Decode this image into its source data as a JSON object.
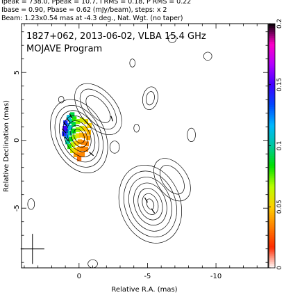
{
  "header": {
    "line1": "Ipeak = 738.0, Ppeak = 10.7, I RMS = 0.18, P RMS = 0.22",
    "line2": "Ibase = 0.90, Pbase = 0.62 (mJy/beam), steps: x 2",
    "line3": "Beam: 1.23x0.54 mas at -4.3 deg., Nat. Wgt. (no taper)"
  },
  "chart_data": {
    "type": "contour",
    "title": "1827+062, 2013-06-02, VLBA 15.4 GHz",
    "subtitle": "MOJAVE Program",
    "xlabel": "Relative R.A. (mas)",
    "ylabel": "Relative Declination (mas)",
    "xlim": [
      4.2,
      -13.8
    ],
    "ylim": [
      -9.4,
      8.6
    ],
    "x_ticks": [
      {
        "v": 0,
        "label": "0"
      },
      {
        "v": -5,
        "label": "-5"
      },
      {
        "v": -10,
        "label": "-10"
      }
    ],
    "y_ticks": [
      {
        "v": 5,
        "label": "5"
      },
      {
        "v": 0,
        "label": "0"
      },
      {
        "v": -5,
        "label": "-5"
      }
    ],
    "colorbar": {
      "range": [
        0,
        0.2
      ],
      "ticks": [
        {
          "v": 0,
          "label": "0"
        },
        {
          "v": 0.05,
          "label": "0.05"
        },
        {
          "v": 0.1,
          "label": "0.1"
        },
        {
          "v": 0.15,
          "label": "0.15"
        },
        {
          "v": 0.2,
          "label": "0.2"
        }
      ],
      "colors": [
        "#ffffff",
        "#ff2a00",
        "#ff7e00",
        "#ffd000",
        "#b8ff00",
        "#00e000",
        "#00c8a0",
        "#00b8ff",
        "#0048ff",
        "#4000ff",
        "#b400ff",
        "#ff00c8",
        "#000000"
      ]
    },
    "components": [
      {
        "name": "core",
        "x": 0.0,
        "y": 0.3,
        "angle": -25,
        "radii": [
          [
            0.35,
            0.55
          ],
          [
            0.55,
            0.85
          ],
          [
            0.8,
            1.2
          ],
          [
            1.05,
            1.6
          ],
          [
            1.3,
            2.0
          ],
          [
            1.6,
            2.4
          ],
          [
            1.9,
            2.85
          ]
        ]
      },
      {
        "name": "jet-north",
        "x": -1.4,
        "y": 2.3,
        "angle": -40,
        "radii": [
          [
            0.6,
            1.2
          ],
          [
            0.95,
            1.75
          ],
          [
            1.3,
            2.2
          ]
        ]
      },
      {
        "name": "south-blob",
        "x": -5.2,
        "y": -4.7,
        "angle": -20,
        "radii": [
          [
            0.25,
            0.4
          ],
          [
            0.55,
            0.8
          ],
          [
            0.85,
            1.2
          ],
          [
            1.15,
            1.6
          ],
          [
            1.5,
            2.05
          ],
          [
            1.85,
            2.5
          ],
          [
            2.2,
            2.95
          ]
        ]
      },
      {
        "name": "south-ext",
        "x": -6.8,
        "y": -2.9,
        "angle": -35,
        "radii": [
          [
            0.7,
            1.2
          ],
          [
            1.1,
            1.75
          ]
        ]
      },
      {
        "name": "blob-a",
        "x": -5.2,
        "y": 3.1,
        "angle": 10,
        "radii": [
          [
            0.3,
            0.5
          ],
          [
            0.55,
            0.85
          ]
        ]
      },
      {
        "name": "blob-b",
        "x": -2.6,
        "y": -0.5,
        "angle": 0,
        "radii": [
          [
            0.35,
            0.45
          ]
        ]
      },
      {
        "name": "blob-c",
        "x": -3.9,
        "y": 5.7,
        "angle": 0,
        "radii": [
          [
            0.2,
            0.3
          ]
        ]
      },
      {
        "name": "blob-d",
        "x": -4.2,
        "y": 0.9,
        "angle": 0,
        "radii": [
          [
            0.2,
            0.3
          ]
        ]
      },
      {
        "name": "blob-e",
        "x": -8.2,
        "y": 0.4,
        "angle": 0,
        "radii": [
          [
            0.3,
            0.5
          ]
        ]
      },
      {
        "name": "blob-f",
        "x": 3.5,
        "y": -4.7,
        "angle": 0,
        "radii": [
          [
            0.25,
            0.4
          ]
        ]
      },
      {
        "name": "blob-g",
        "x": 1.3,
        "y": 3.0,
        "angle": 0,
        "radii": [
          [
            0.2,
            0.25
          ]
        ]
      },
      {
        "name": "blob-h",
        "x": -6.8,
        "y": 7.5,
        "angle": 0,
        "radii": [
          [
            0.3,
            0.3
          ]
        ]
      },
      {
        "name": "blob-i",
        "x": -9.4,
        "y": 6.2,
        "angle": 0,
        "radii": [
          [
            0.3,
            0.3
          ]
        ]
      },
      {
        "name": "blob-j",
        "x": -1.0,
        "y": -9.1,
        "angle": 0,
        "radii": [
          [
            0.35,
            0.3
          ]
        ]
      }
    ],
    "polarization_pixels": [
      {
        "x": 0.85,
        "y": 1.1,
        "v": 0.12
      },
      {
        "x": 0.6,
        "y": 1.4,
        "v": 0.1
      },
      {
        "x": 0.35,
        "y": 1.6,
        "v": 0.08
      },
      {
        "x": 0.9,
        "y": 0.7,
        "v": 0.13
      },
      {
        "x": 0.65,
        "y": 0.95,
        "v": 0.11
      },
      {
        "x": 0.4,
        "y": 1.2,
        "v": 0.09
      },
      {
        "x": 0.1,
        "y": 1.4,
        "v": 0.07
      },
      {
        "x": -0.2,
        "y": 1.5,
        "v": 0.06
      },
      {
        "x": -0.5,
        "y": 1.4,
        "v": 0.055
      },
      {
        "x": -0.75,
        "y": 1.1,
        "v": 0.05
      },
      {
        "x": 0.9,
        "y": 0.3,
        "v": 0.12
      },
      {
        "x": 0.65,
        "y": 0.55,
        "v": 0.1
      },
      {
        "x": 0.4,
        "y": 0.7,
        "v": 0.085
      },
      {
        "x": 0.1,
        "y": 0.8,
        "v": 0.07
      },
      {
        "x": -0.2,
        "y": 0.9,
        "v": 0.06
      },
      {
        "x": -0.45,
        "y": 0.85,
        "v": 0.05
      },
      {
        "x": -0.7,
        "y": 0.6,
        "v": 0.045
      },
      {
        "x": 0.85,
        "y": -0.1,
        "v": 0.1
      },
      {
        "x": 0.6,
        "y": 0.1,
        "v": 0.085
      },
      {
        "x": 0.35,
        "y": 0.25,
        "v": 0.07
      },
      {
        "x": 0.1,
        "y": 0.35,
        "v": 0.055
      },
      {
        "x": -0.15,
        "y": 0.4,
        "v": 0.045
      },
      {
        "x": -0.4,
        "y": 0.35,
        "v": 0.04
      },
      {
        "x": -0.65,
        "y": 0.2,
        "v": 0.04
      },
      {
        "x": 0.7,
        "y": -0.45,
        "v": 0.08
      },
      {
        "x": 0.45,
        "y": -0.3,
        "v": 0.065
      },
      {
        "x": 0.2,
        "y": -0.2,
        "v": 0.05
      },
      {
        "x": -0.05,
        "y": -0.1,
        "v": 0.04
      },
      {
        "x": -0.3,
        "y": -0.15,
        "v": 0.035
      },
      {
        "x": -0.55,
        "y": -0.25,
        "v": 0.035
      },
      {
        "x": 0.5,
        "y": -0.75,
        "v": 0.06
      },
      {
        "x": 0.25,
        "y": -0.7,
        "v": 0.05
      },
      {
        "x": 0.0,
        "y": -0.65,
        "v": 0.04
      },
      {
        "x": -0.25,
        "y": -0.6,
        "v": 0.035
      },
      {
        "x": -0.5,
        "y": -0.65,
        "v": 0.035
      },
      {
        "x": 0.25,
        "y": -1.05,
        "v": 0.04
      },
      {
        "x": 0.0,
        "y": -1.05,
        "v": 0.035
      },
      {
        "x": -0.25,
        "y": -1.0,
        "v": 0.035
      },
      {
        "x": 0.0,
        "y": -1.35,
        "v": 0.03
      },
      {
        "x": 1.05,
        "y": 0.9,
        "v": 0.15
      },
      {
        "x": 1.1,
        "y": 0.5,
        "v": 0.14
      },
      {
        "x": 1.0,
        "y": 1.3,
        "v": 0.14
      },
      {
        "x": 0.75,
        "y": 1.7,
        "v": 0.11
      },
      {
        "x": 0.5,
        "y": 1.9,
        "v": 0.09
      }
    ],
    "evpa_segments": [
      {
        "x": 1.0,
        "y": 1.2,
        "angle": 40
      },
      {
        "x": 0.8,
        "y": 1.5,
        "angle": 35
      },
      {
        "x": 1.1,
        "y": 0.7,
        "angle": 45
      },
      {
        "x": 0.9,
        "y": 0.1,
        "angle": 40
      },
      {
        "x": 0.6,
        "y": 1.8,
        "angle": 30
      },
      {
        "x": -2.4,
        "y": 1.6,
        "angle": 20
      },
      {
        "x": -0.9,
        "y": -1.0,
        "angle": 50
      },
      {
        "x": -4.9,
        "y": -4.4,
        "angle": 30
      },
      {
        "x": -5.4,
        "y": -5.2,
        "angle": 35
      }
    ],
    "beam": {
      "x": 3.4,
      "y": -8.0,
      "major": 1.23,
      "minor": 0.54,
      "pa": -4.3
    }
  }
}
